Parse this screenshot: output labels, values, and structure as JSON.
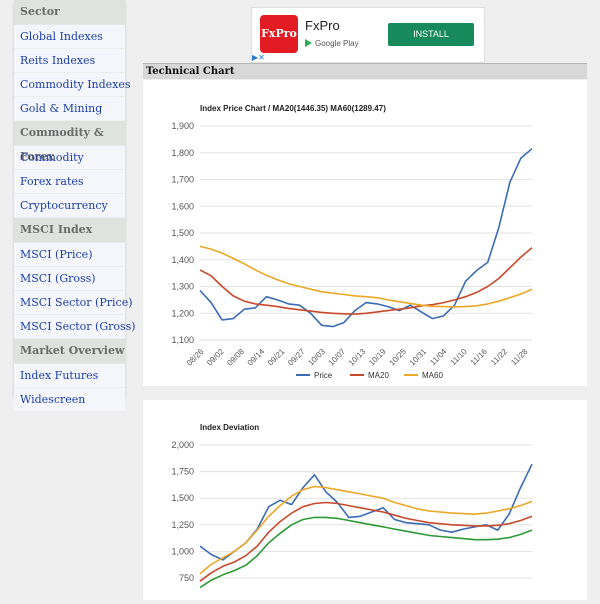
{
  "sidebar": {
    "groups": [
      {
        "title": "Sector",
        "items": [
          "Global Indexes",
          "Reits Indexes",
          "Commodity Indexes",
          "Gold & Mining"
        ]
      },
      {
        "title": "Commodity & Forex",
        "items": [
          "Commodity",
          "Forex rates",
          "Cryptocurrency"
        ]
      },
      {
        "title": "MSCI Index",
        "items": [
          "MSCI (Price)",
          "MSCI (Gross)",
          "MSCI Sector (Price)",
          "MSCI Sector (Gross)"
        ]
      },
      {
        "title": "Market Overview",
        "items": [
          "Index Futures",
          "Widescreen"
        ]
      }
    ]
  },
  "ad": {
    "logo": "FxPro",
    "name": "FxPro",
    "store": "Google Play",
    "button": "INSTALL"
  },
  "panel": {
    "title": "Technical Chart"
  },
  "colors": {
    "price": "#3b6bb3",
    "ma20": "#c8492c",
    "ma60": "#eba726",
    "dev_low": "#2e9a36"
  },
  "chart_data": [
    {
      "type": "line",
      "title": "Index Price Chart / MA20(1446.35) MA60(1289.47)",
      "x_ticks": [
        "08/26",
        "09/02",
        "09/08",
        "09/14",
        "09/21",
        "09/27",
        "10/03",
        "10/07",
        "10/13",
        "10/19",
        "10/25",
        "10/31",
        "11/04",
        "11/10",
        "11/16",
        "11/22",
        "11/28"
      ],
      "ylim": [
        1100,
        1900
      ],
      "y_ticks": [
        1100,
        1200,
        1300,
        1400,
        1500,
        1600,
        1700,
        1800,
        1900
      ],
      "series": [
        {
          "name": "Price",
          "color": "#3b6bb3",
          "values": [
            1285,
            1240,
            1175,
            1180,
            1215,
            1220,
            1262,
            1250,
            1235,
            1230,
            1200,
            1155,
            1150,
            1165,
            1210,
            1240,
            1235,
            1225,
            1210,
            1230,
            1205,
            1180,
            1190,
            1230,
            1320,
            1360,
            1390,
            1520,
            1690,
            1780,
            1815
          ]
        },
        {
          "name": "MA20",
          "color": "#c8492c",
          "values": [
            1362,
            1340,
            1300,
            1265,
            1245,
            1235,
            1230,
            1225,
            1218,
            1213,
            1208,
            1203,
            1200,
            1198,
            1197,
            1200,
            1205,
            1210,
            1215,
            1220,
            1228,
            1232,
            1240,
            1250,
            1262,
            1278,
            1300,
            1330,
            1370,
            1410,
            1445
          ]
        },
        {
          "name": "MA60",
          "color": "#eba726",
          "values": [
            1450,
            1440,
            1425,
            1405,
            1385,
            1362,
            1342,
            1325,
            1310,
            1300,
            1290,
            1280,
            1275,
            1270,
            1265,
            1262,
            1258,
            1250,
            1243,
            1237,
            1230,
            1226,
            1225,
            1224,
            1225,
            1228,
            1235,
            1245,
            1258,
            1272,
            1290
          ]
        }
      ],
      "legend": "bottom"
    },
    {
      "type": "line",
      "title": "Index Deviation",
      "ylim": [
        750,
        2000
      ],
      "y_ticks": [
        750,
        1000,
        1250,
        1500,
        1750,
        2000
      ],
      "series": [
        {
          "name": "",
          "color": "#3b6bb3",
          "values": [
            1050,
            970,
            920,
            1000,
            1080,
            1210,
            1420,
            1480,
            1440,
            1600,
            1720,
            1560,
            1460,
            1320,
            1330,
            1370,
            1410,
            1300,
            1270,
            1260,
            1250,
            1200,
            1180,
            1210,
            1230,
            1250,
            1200,
            1350,
            1600,
            1820
          ]
        },
        {
          "name": "",
          "color": "#eba726",
          "values": [
            790,
            880,
            940,
            1000,
            1080,
            1200,
            1330,
            1430,
            1520,
            1580,
            1610,
            1600,
            1580,
            1560,
            1540,
            1520,
            1500,
            1460,
            1430,
            1400,
            1380,
            1370,
            1360,
            1355,
            1350,
            1360,
            1380,
            1400,
            1430,
            1470
          ]
        },
        {
          "name": "",
          "color": "#c8492c",
          "values": [
            720,
            800,
            860,
            900,
            960,
            1050,
            1180,
            1280,
            1360,
            1420,
            1450,
            1460,
            1450,
            1430,
            1410,
            1390,
            1370,
            1340,
            1310,
            1290,
            1270,
            1260,
            1250,
            1245,
            1240,
            1240,
            1245,
            1260,
            1290,
            1330
          ]
        },
        {
          "name": "",
          "color": "#2e9a36",
          "values": [
            660,
            730,
            780,
            820,
            870,
            960,
            1080,
            1170,
            1250,
            1300,
            1320,
            1320,
            1310,
            1290,
            1270,
            1250,
            1230,
            1210,
            1190,
            1170,
            1150,
            1140,
            1130,
            1120,
            1110,
            1110,
            1115,
            1130,
            1160,
            1200
          ]
        }
      ]
    }
  ]
}
